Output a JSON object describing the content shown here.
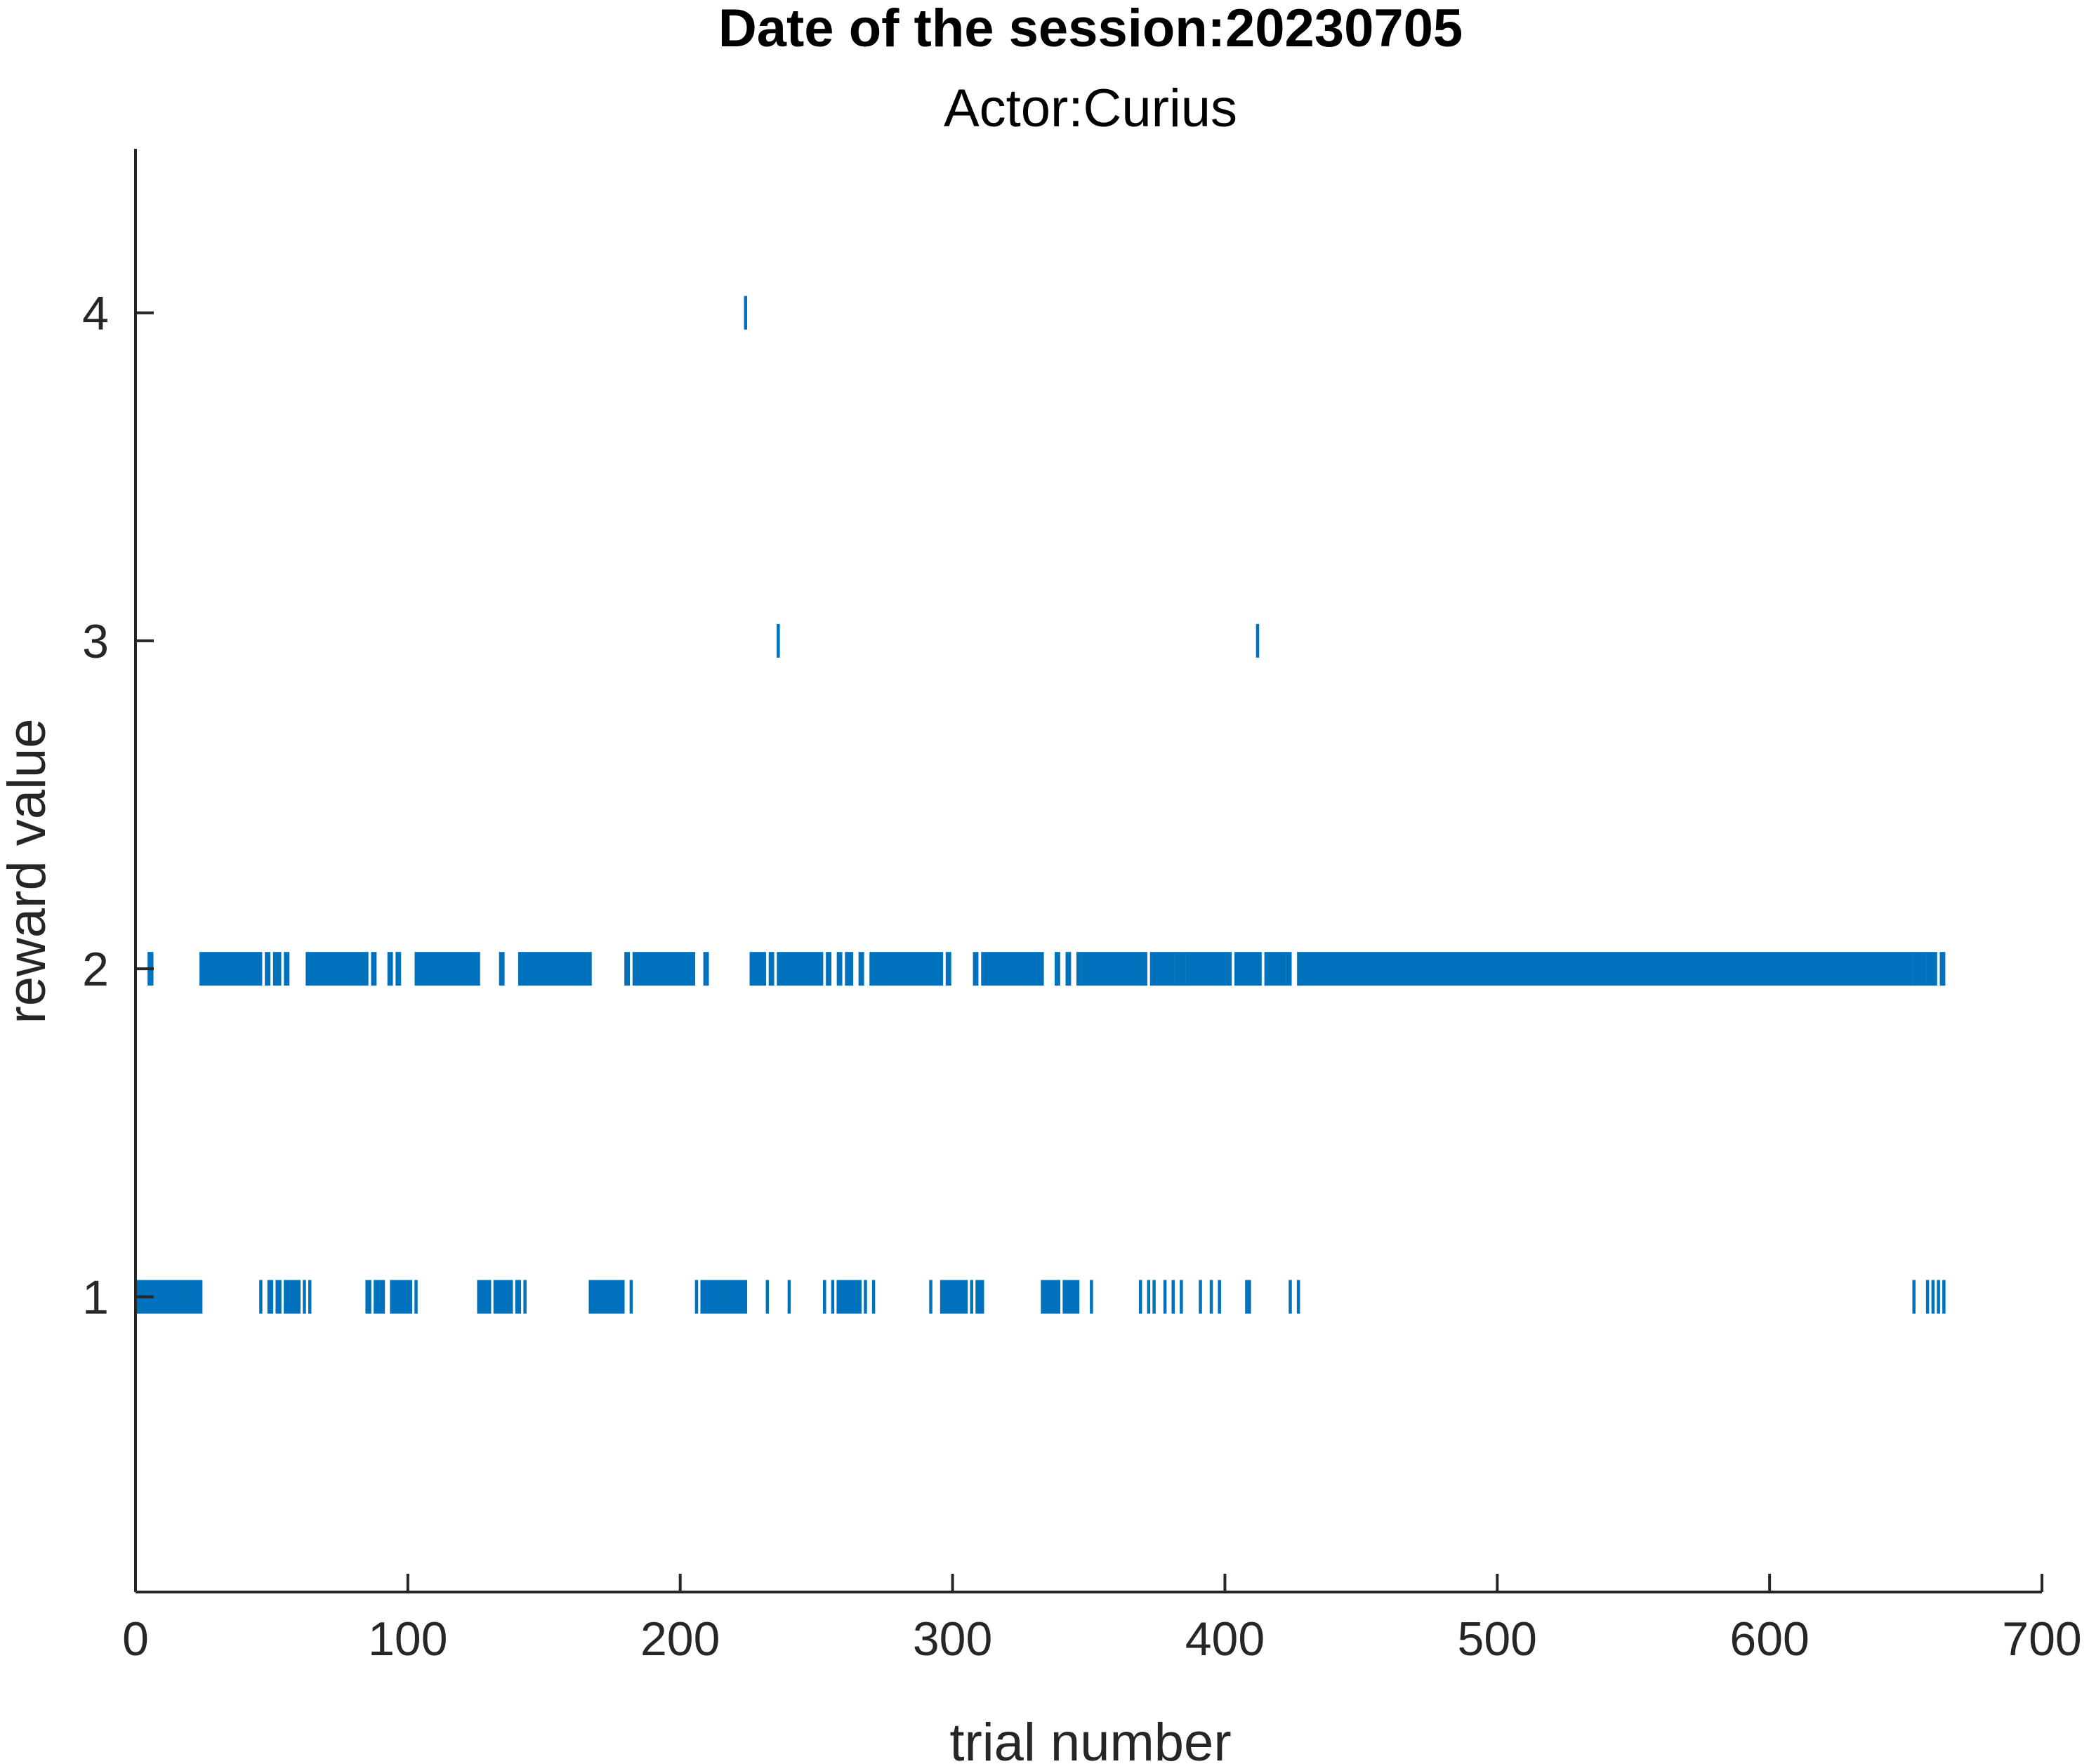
{
  "chart_data": {
    "type": "scatter",
    "marker": "vertical-line",
    "title": "Date of the session:20230705",
    "subtitle": "Actor:Curius",
    "xlabel": "trial number",
    "ylabel": "reward value",
    "xlim": [
      0,
      700
    ],
    "ylim": [
      0.1,
      4.5
    ],
    "xticks": [
      0,
      100,
      200,
      300,
      400,
      500,
      600,
      700
    ],
    "yticks": [
      1,
      2,
      3,
      4
    ],
    "grid": false,
    "color": "#0072BD",
    "series": [
      {
        "y": 1,
        "x": [
          1,
          2,
          3,
          4,
          5,
          6,
          7,
          8,
          9,
          10,
          11,
          12,
          13,
          14,
          15,
          16,
          17,
          18,
          19,
          20,
          21,
          22,
          23,
          24,
          46,
          49,
          50,
          52,
          53,
          55,
          56,
          57,
          58,
          59,
          60,
          62,
          64,
          85,
          86,
          88,
          89,
          90,
          91,
          94,
          95,
          96,
          97,
          98,
          99,
          100,
          101,
          103,
          126,
          127,
          128,
          129,
          130,
          132,
          133,
          134,
          135,
          136,
          137,
          138,
          140,
          141,
          143,
          167,
          168,
          169,
          170,
          171,
          172,
          173,
          174,
          175,
          176,
          177,
          178,
          179,
          182,
          206,
          208,
          209,
          210,
          211,
          212,
          213,
          214,
          215,
          216,
          217,
          218,
          219,
          220,
          221,
          222,
          223,
          224,
          232,
          240,
          253,
          256,
          258,
          259,
          260,
          261,
          262,
          263,
          264,
          265,
          266,
          268,
          271,
          292,
          296,
          297,
          298,
          299,
          300,
          301,
          302,
          303,
          304,
          305,
          307,
          309,
          310,
          311,
          333,
          334,
          335,
          336,
          337,
          338,
          339,
          341,
          342,
          343,
          344,
          345,
          346,
          351,
          369,
          372,
          374,
          378,
          381,
          384,
          391,
          395,
          398,
          408,
          409,
          424,
          427,
          653,
          658,
          660,
          662,
          664
        ]
      },
      {
        "y": 2,
        "x": [
          5,
          6
        ]
      },
      {
        "y": 3,
        "x": [
          236,
          412
        ]
      },
      {
        "y": 4,
        "x": [
          224
        ]
      }
    ],
    "y2_segments": [
      [
        24,
        46
      ],
      [
        48,
        49
      ],
      [
        51,
        53
      ],
      [
        55,
        56
      ],
      [
        63,
        85
      ],
      [
        87,
        88
      ],
      [
        93,
        94
      ],
      [
        96,
        97
      ],
      [
        103,
        126
      ],
      [
        134,
        135
      ],
      [
        141,
        167
      ],
      [
        180,
        181
      ],
      [
        183,
        205
      ],
      [
        209,
        210
      ],
      [
        226,
        231
      ],
      [
        233,
        234
      ],
      [
        236,
        252
      ],
      [
        254,
        255
      ],
      [
        258,
        259
      ],
      [
        261,
        263
      ],
      [
        266,
        267
      ],
      [
        270,
        296
      ],
      [
        298,
        299
      ],
      [
        308,
        309
      ],
      [
        311,
        333
      ],
      [
        338,
        339
      ],
      [
        342,
        343
      ],
      [
        346,
        347
      ],
      [
        348,
        369
      ],
      [
        370,
        371
      ],
      [
        373,
        374
      ],
      [
        375,
        381
      ],
      [
        382,
        383
      ],
      [
        384,
        385
      ],
      [
        386,
        400
      ],
      [
        401,
        402
      ],
      [
        404,
        411
      ],
      [
        412,
        413
      ],
      [
        415,
        422
      ],
      [
        423,
        424
      ],
      [
        427,
        652
      ],
      [
        653,
        657
      ],
      [
        658,
        661
      ],
      [
        663,
        664
      ]
    ]
  }
}
